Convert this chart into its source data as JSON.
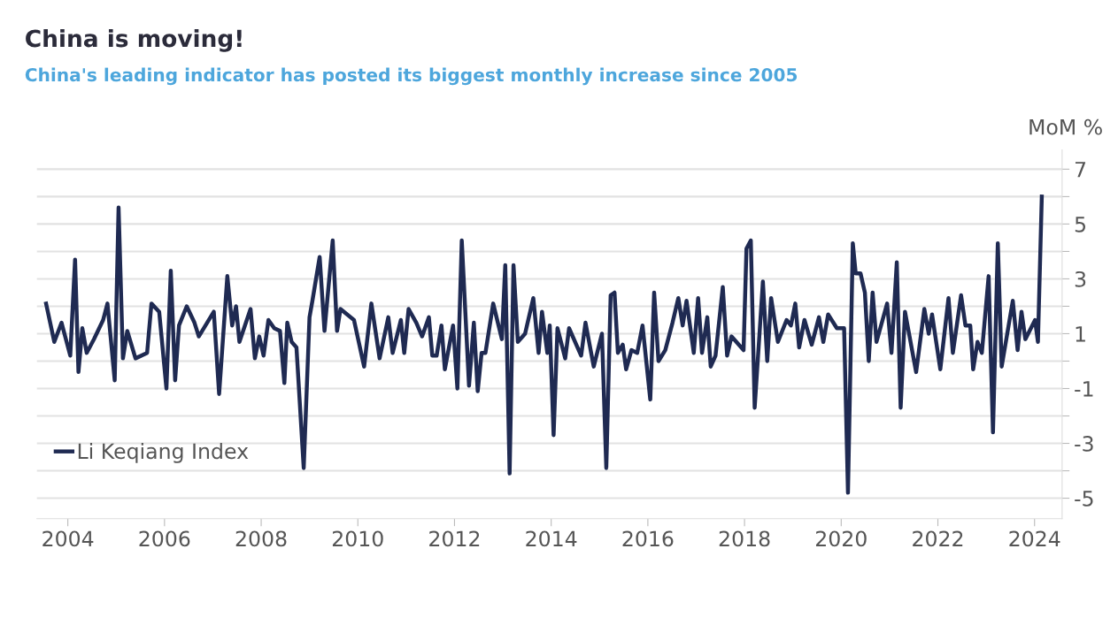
{
  "chart_data": {
    "type": "line",
    "title": "China is moving!",
    "subtitle": "China's leading indicator has posted its biggest monthly increase since 2005",
    "ylabel": "MoM %",
    "series": [
      {
        "name": "Li Keqiang Index",
        "color": "#1f2a52",
        "x": [
          2003.55,
          2003.72,
          2003.87,
          2004.05,
          2004.15,
          2004.22,
          2004.3,
          2004.39,
          2004.54,
          2004.73,
          2004.82,
          2004.97,
          2005.05,
          2005.14,
          2005.23,
          2005.4,
          2005.64,
          2005.73,
          2005.89,
          2006.04,
          2006.13,
          2006.22,
          2006.3,
          2006.46,
          2006.62,
          2006.71,
          2007.02,
          2007.13,
          2007.3,
          2007.4,
          2007.48,
          2007.55,
          2007.78,
          2007.87,
          2007.96,
          2008.05,
          2008.15,
          2008.27,
          2008.39,
          2008.48,
          2008.54,
          2008.63,
          2008.73,
          2008.88,
          2009.0,
          2009.06,
          2009.21,
          2009.31,
          2009.48,
          2009.57,
          2009.64,
          2009.92,
          2010.13,
          2010.28,
          2010.45,
          2010.63,
          2010.72,
          2010.89,
          2010.96,
          2011.05,
          2011.21,
          2011.33,
          2011.47,
          2011.54,
          2011.63,
          2011.73,
          2011.8,
          2011.97,
          2012.06,
          2012.15,
          2012.3,
          2012.4,
          2012.48,
          2012.56,
          2012.64,
          2012.8,
          2012.98,
          2013.05,
          2013.14,
          2013.22,
          2013.31,
          2013.46,
          2013.63,
          2013.74,
          2013.81,
          2013.92,
          2013.97,
          2014.05,
          2014.13,
          2014.29,
          2014.37,
          2014.62,
          2014.71,
          2014.88,
          2015.05,
          2015.14,
          2015.23,
          2015.31,
          2015.38,
          2015.48,
          2015.55,
          2015.66,
          2015.78,
          2015.89,
          2016.05,
          2016.13,
          2016.22,
          2016.36,
          2016.51,
          2016.63,
          2016.72,
          2016.8,
          2016.95,
          2017.04,
          2017.12,
          2017.23,
          2017.3,
          2017.4,
          2017.55,
          2017.64,
          2017.73,
          2017.98,
          2018.04,
          2018.13,
          2018.21,
          2018.38,
          2018.47,
          2018.55,
          2018.69,
          2018.87,
          2018.96,
          2019.05,
          2019.13,
          2019.24,
          2019.39,
          2019.54,
          2019.63,
          2019.73,
          2019.91,
          2020.06,
          2020.14,
          2020.24,
          2020.3,
          2020.4,
          2020.49,
          2020.57,
          2020.65,
          2020.73,
          2020.95,
          2021.04,
          2021.15,
          2021.23,
          2021.32,
          2021.55,
          2021.72,
          2021.81,
          2021.88,
          2022.05,
          2022.22,
          2022.31,
          2022.48,
          2022.57,
          2022.67,
          2022.73,
          2022.82,
          2022.91,
          2023.05,
          2023.14,
          2023.24,
          2023.32,
          2023.55,
          2023.65,
          2023.73,
          2023.81,
          2024.01,
          2024.07,
          2024.15
        ],
        "values": [
          2.1,
          0.7,
          1.4,
          0.2,
          3.7,
          -0.4,
          1.2,
          0.3,
          0.8,
          1.5,
          2.1,
          -0.7,
          5.6,
          0.1,
          1.1,
          0.1,
          0.3,
          2.1,
          1.8,
          -1.0,
          3.3,
          -0.7,
          1.3,
          2.0,
          1.4,
          0.9,
          1.8,
          -1.2,
          3.1,
          1.3,
          2.0,
          0.7,
          1.9,
          0.1,
          0.9,
          0.2,
          1.5,
          1.2,
          1.1,
          -0.8,
          1.4,
          0.7,
          0.5,
          -3.9,
          1.6,
          2.2,
          3.8,
          1.1,
          4.4,
          1.1,
          1.9,
          1.5,
          -0.2,
          2.1,
          0.1,
          1.6,
          0.3,
          1.5,
          0.3,
          1.9,
          1.4,
          0.9,
          1.6,
          0.2,
          0.2,
          1.3,
          -0.3,
          1.3,
          -1.0,
          4.4,
          -0.9,
          1.4,
          -1.1,
          0.3,
          0.3,
          2.1,
          0.8,
          3.5,
          -4.1,
          3.5,
          0.7,
          1.0,
          2.3,
          0.3,
          1.8,
          0.3,
          1.3,
          -2.7,
          1.2,
          0.1,
          1.2,
          0.2,
          1.4,
          -0.2,
          1.0,
          -3.9,
          2.4,
          2.5,
          0.3,
          0.6,
          -0.3,
          0.4,
          0.3,
          1.3,
          -1.4,
          2.5,
          0.0,
          0.4,
          1.4,
          2.3,
          1.3,
          2.2,
          0.3,
          2.3,
          0.3,
          1.6,
          -0.2,
          0.2,
          2.7,
          0.2,
          0.9,
          0.4,
          4.1,
          4.4,
          -1.7,
          2.9,
          0.0,
          2.3,
          0.7,
          1.5,
          1.3,
          2.1,
          0.5,
          1.5,
          0.6,
          1.6,
          0.7,
          1.7,
          1.2,
          1.2,
          -4.8,
          4.3,
          3.2,
          3.2,
          2.5,
          0.0,
          2.5,
          0.7,
          2.1,
          0.3,
          3.6,
          -1.7,
          1.8,
          -0.4,
          1.9,
          1.0,
          1.7,
          -0.3,
          2.3,
          0.3,
          2.4,
          1.3,
          1.3,
          -0.3,
          0.7,
          0.3,
          3.1,
          -2.6,
          4.3,
          -0.2,
          2.2,
          0.4,
          1.8,
          0.8,
          1.5,
          0.7,
          6.0
        ]
      }
    ],
    "xlim": [
      2003.36,
      2024.57
    ],
    "xticks": [
      2004,
      2006,
      2008,
      2010,
      2012,
      2014,
      2016,
      2018,
      2020,
      2022,
      2024
    ],
    "ylim": [
      -5.75,
      7.7
    ],
    "yticks": [
      {
        "value": -5,
        "label": "-5"
      },
      {
        "value": -4,
        "label": null
      },
      {
        "value": -3,
        "label": "-3"
      },
      {
        "value": -2,
        "label": null
      },
      {
        "value": -1,
        "label": "-1"
      },
      {
        "value": 0,
        "label": null
      },
      1,
      {
        "value": 2,
        "label": null
      },
      3,
      {
        "value": 4,
        "label": null
      },
      5,
      {
        "value": 6,
        "label": null
      },
      7
    ],
    "grid": "y",
    "legend": "bottom left",
    "line_style": "solid",
    "marker": "none"
  }
}
